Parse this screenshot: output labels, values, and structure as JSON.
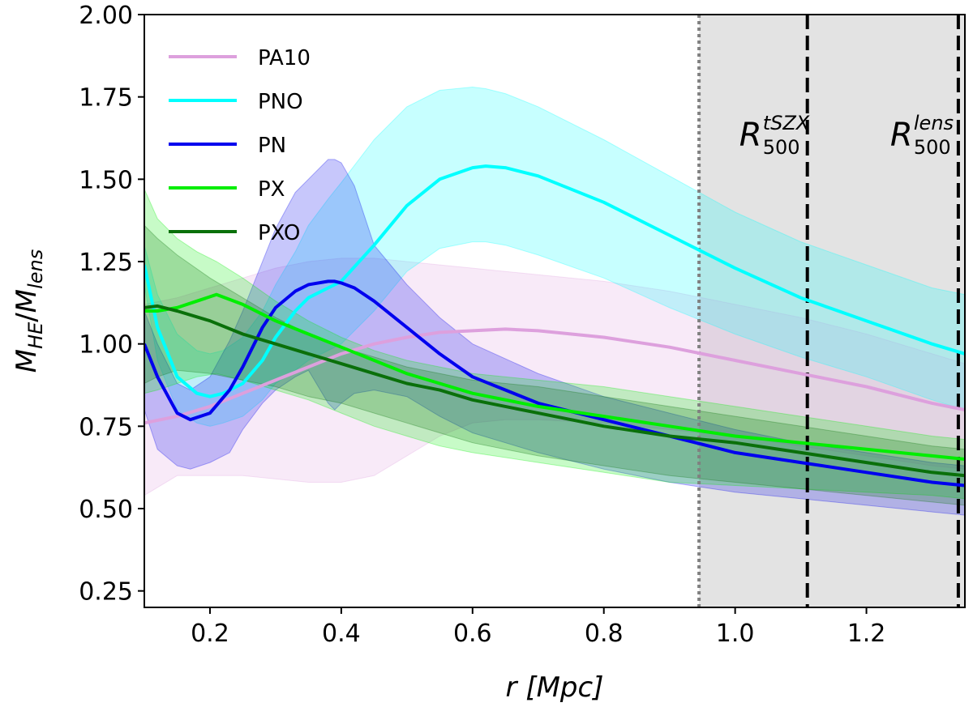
{
  "chart_data": {
    "type": "line",
    "xlabel_var": "r",
    "xlabel_unit": "[Mpc]",
    "ylabel_num": "M",
    "ylabel_num_sub": "HE",
    "ylabel_den": "M",
    "ylabel_den_sub": "lens",
    "xlim": [
      0.1,
      1.35
    ],
    "ylim": [
      0.2,
      2.0
    ],
    "xticks": [
      0.2,
      0.4,
      0.6,
      0.8,
      1.0,
      1.2
    ],
    "xtick_labels": [
      "0.2",
      "0.4",
      "0.6",
      "0.8",
      "1.0",
      "1.2"
    ],
    "yticks": [
      0.25,
      0.5,
      0.75,
      1.0,
      1.25,
      1.5,
      1.75,
      2.0
    ],
    "ytick_labels": [
      "0.25",
      "0.50",
      "0.75",
      "1.00",
      "1.25",
      "1.50",
      "1.75",
      "2.00"
    ],
    "grid": false,
    "legend_position": "top-left",
    "shaded_region": {
      "x_start": 0.945,
      "x_end": 1.35,
      "color": "#e3e3e3"
    },
    "vlines": [
      {
        "x": 0.945,
        "style": "dotted",
        "color": "#808080",
        "label_main": "",
        "label_sup": "",
        "label_sub": ""
      },
      {
        "x": 1.11,
        "style": "dashed",
        "color": "#000000",
        "label_main": "R",
        "label_sup": "tSZX",
        "label_sub": "500"
      },
      {
        "x": 1.34,
        "style": "dashed",
        "color": "#000000",
        "label_main": "R",
        "label_sup": "lens",
        "label_sub": "500"
      }
    ],
    "series": [
      {
        "name": "PA10",
        "color": "#dda0dd",
        "x": [
          0.1,
          0.15,
          0.2,
          0.25,
          0.3,
          0.35,
          0.4,
          0.45,
          0.5,
          0.55,
          0.6,
          0.65,
          0.7,
          0.8,
          0.9,
          1.0,
          1.1,
          1.2,
          1.3,
          1.35
        ],
        "y": [
          0.76,
          0.78,
          0.81,
          0.85,
          0.89,
          0.93,
          0.97,
          1.0,
          1.02,
          1.035,
          1.04,
          1.045,
          1.04,
          1.02,
          0.99,
          0.95,
          0.91,
          0.87,
          0.82,
          0.8
        ],
        "upper": [
          1.12,
          1.14,
          1.17,
          1.2,
          1.23,
          1.25,
          1.26,
          1.26,
          1.25,
          1.24,
          1.23,
          1.22,
          1.21,
          1.19,
          1.16,
          1.12,
          1.08,
          1.03,
          0.97,
          0.94
        ],
        "lower": [
          0.54,
          0.6,
          0.6,
          0.6,
          0.59,
          0.58,
          0.58,
          0.6,
          0.66,
          0.72,
          0.76,
          0.77,
          0.77,
          0.76,
          0.74,
          0.72,
          0.69,
          0.66,
          0.63,
          0.62
        ]
      },
      {
        "name": "PNO",
        "color": "#00ffff",
        "x": [
          0.1,
          0.12,
          0.15,
          0.18,
          0.2,
          0.22,
          0.25,
          0.28,
          0.3,
          0.33,
          0.35,
          0.38,
          0.4,
          0.45,
          0.5,
          0.55,
          0.6,
          0.62,
          0.65,
          0.7,
          0.8,
          0.9,
          1.0,
          1.1,
          1.2,
          1.3,
          1.35
        ],
        "y": [
          1.24,
          1.05,
          0.9,
          0.85,
          0.84,
          0.85,
          0.88,
          0.95,
          1.02,
          1.1,
          1.14,
          1.17,
          1.19,
          1.3,
          1.42,
          1.5,
          1.535,
          1.54,
          1.535,
          1.51,
          1.43,
          1.33,
          1.23,
          1.14,
          1.07,
          1.0,
          0.97
        ],
        "upper": [
          1.3,
          1.15,
          1.03,
          0.98,
          0.97,
          0.98,
          1.02,
          1.1,
          1.18,
          1.28,
          1.36,
          1.44,
          1.49,
          1.62,
          1.72,
          1.77,
          1.78,
          1.775,
          1.76,
          1.72,
          1.62,
          1.51,
          1.4,
          1.31,
          1.24,
          1.17,
          1.15
        ],
        "lower": [
          1.18,
          0.95,
          0.8,
          0.76,
          0.75,
          0.76,
          0.78,
          0.83,
          0.88,
          0.92,
          0.95,
          0.98,
          1.0,
          1.1,
          1.22,
          1.29,
          1.31,
          1.31,
          1.3,
          1.27,
          1.2,
          1.11,
          1.03,
          0.96,
          0.9,
          0.83,
          0.8
        ]
      },
      {
        "name": "PN",
        "color": "#0000ee",
        "x": [
          0.1,
          0.12,
          0.15,
          0.17,
          0.2,
          0.23,
          0.25,
          0.28,
          0.3,
          0.33,
          0.35,
          0.38,
          0.39,
          0.4,
          0.42,
          0.45,
          0.5,
          0.55,
          0.6,
          0.7,
          0.8,
          0.9,
          1.0,
          1.1,
          1.2,
          1.3,
          1.35
        ],
        "y": [
          1.0,
          0.9,
          0.79,
          0.77,
          0.79,
          0.86,
          0.93,
          1.05,
          1.11,
          1.16,
          1.18,
          1.19,
          1.19,
          1.185,
          1.17,
          1.13,
          1.05,
          0.97,
          0.9,
          0.82,
          0.77,
          0.72,
          0.67,
          0.64,
          0.61,
          0.58,
          0.57
        ],
        "upper": [
          1.1,
          1.0,
          0.88,
          0.86,
          0.9,
          1.01,
          1.1,
          1.25,
          1.35,
          1.46,
          1.5,
          1.56,
          1.56,
          1.55,
          1.48,
          1.3,
          1.18,
          1.08,
          1.0,
          0.91,
          0.84,
          0.79,
          0.74,
          0.7,
          0.67,
          0.64,
          0.63
        ],
        "lower": [
          0.8,
          0.68,
          0.63,
          0.62,
          0.64,
          0.67,
          0.74,
          0.82,
          0.86,
          0.9,
          0.92,
          0.82,
          0.8,
          0.82,
          0.85,
          0.86,
          0.84,
          0.78,
          0.73,
          0.67,
          0.62,
          0.58,
          0.55,
          0.53,
          0.51,
          0.49,
          0.48
        ]
      },
      {
        "name": "PX",
        "color": "#00ee00",
        "x": [
          0.1,
          0.12,
          0.15,
          0.18,
          0.21,
          0.25,
          0.3,
          0.35,
          0.4,
          0.45,
          0.5,
          0.55,
          0.6,
          0.7,
          0.8,
          0.9,
          1.0,
          1.1,
          1.2,
          1.3,
          1.35
        ],
        "y": [
          1.1,
          1.1,
          1.11,
          1.13,
          1.15,
          1.12,
          1.07,
          1.03,
          0.99,
          0.95,
          0.91,
          0.88,
          0.85,
          0.81,
          0.78,
          0.75,
          0.72,
          0.7,
          0.68,
          0.66,
          0.65
        ],
        "upper": [
          1.47,
          1.38,
          1.32,
          1.28,
          1.25,
          1.2,
          1.13,
          1.07,
          1.02,
          0.98,
          0.95,
          0.93,
          0.91,
          0.89,
          0.87,
          0.84,
          0.81,
          0.78,
          0.75,
          0.72,
          0.71
        ],
        "lower": [
          0.85,
          0.86,
          0.88,
          0.9,
          0.91,
          0.89,
          0.86,
          0.83,
          0.79,
          0.75,
          0.72,
          0.69,
          0.67,
          0.64,
          0.61,
          0.58,
          0.57,
          0.56,
          0.55,
          0.54,
          0.53
        ]
      },
      {
        "name": "PXO",
        "color": "#0a700a",
        "x": [
          0.1,
          0.12,
          0.15,
          0.2,
          0.25,
          0.3,
          0.35,
          0.4,
          0.45,
          0.5,
          0.55,
          0.6,
          0.7,
          0.8,
          0.9,
          1.0,
          1.1,
          1.2,
          1.3,
          1.35
        ],
        "y": [
          1.11,
          1.115,
          1.1,
          1.07,
          1.03,
          1.0,
          0.97,
          0.94,
          0.91,
          0.88,
          0.86,
          0.83,
          0.79,
          0.75,
          0.72,
          0.7,
          0.67,
          0.64,
          0.61,
          0.6
        ],
        "upper": [
          1.36,
          1.32,
          1.27,
          1.2,
          1.14,
          1.08,
          1.03,
          0.99,
          0.96,
          0.93,
          0.91,
          0.89,
          0.87,
          0.84,
          0.81,
          0.78,
          0.75,
          0.72,
          0.69,
          0.68
        ],
        "lower": [
          0.88,
          0.9,
          0.92,
          0.91,
          0.89,
          0.87,
          0.84,
          0.82,
          0.79,
          0.76,
          0.73,
          0.7,
          0.66,
          0.63,
          0.6,
          0.58,
          0.56,
          0.54,
          0.52,
          0.51
        ]
      }
    ]
  }
}
